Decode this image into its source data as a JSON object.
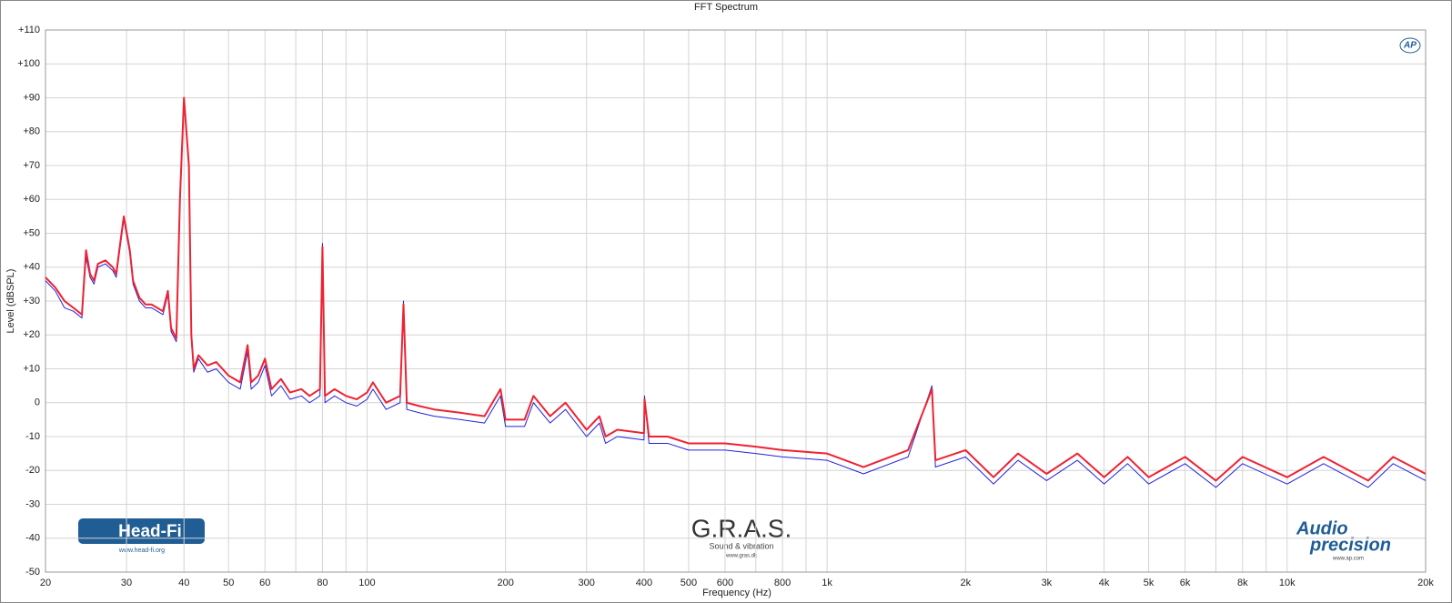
{
  "chart_data": {
    "type": "line",
    "title": "FFT Spectrum",
    "xlabel": "Frequency (Hz)",
    "ylabel": "Level (dBSPL)",
    "xscale": "log",
    "grid": true,
    "xlim": [
      20,
      20000
    ],
    "xticks": [
      20,
      30,
      40,
      50,
      60,
      80,
      100,
      200,
      300,
      400,
      500,
      600,
      800,
      {
        "value": 1000,
        "label": "1k"
      },
      {
        "value": 2000,
        "label": "2k"
      },
      {
        "value": 3000,
        "label": "3k"
      },
      {
        "value": 4000,
        "label": "4k"
      },
      {
        "value": 5000,
        "label": "5k"
      },
      {
        "value": 6000,
        "label": "6k"
      },
      {
        "value": 8000,
        "label": "8k"
      },
      {
        "value": 10000,
        "label": "10k"
      },
      {
        "value": 20000,
        "label": "20k"
      }
    ],
    "x_minor_grid": [
      70,
      90,
      700,
      900,
      7000,
      9000
    ],
    "ylim": [
      -50,
      110
    ],
    "yticks": [
      -50,
      -40,
      -30,
      -20,
      -10,
      0,
      {
        "value": 10,
        "label": "+10"
      },
      {
        "value": 20,
        "label": "+20"
      },
      {
        "value": 30,
        "label": "+30"
      },
      {
        "value": 40,
        "label": "+40"
      },
      {
        "value": 50,
        "label": "+50"
      },
      {
        "value": 60,
        "label": "+60"
      },
      {
        "value": 70,
        "label": "+70"
      },
      {
        "value": 80,
        "label": "+80"
      },
      {
        "value": 90,
        "label": "+90"
      },
      {
        "value": 100,
        "label": "+100"
      },
      {
        "value": 110,
        "label": "+110"
      }
    ],
    "x": [
      20,
      21,
      22,
      23,
      24,
      24.5,
      25,
      25.5,
      26,
      27,
      28,
      28.5,
      29,
      29.6,
      30.5,
      31,
      32,
      33,
      34,
      35,
      36,
      36.9,
      37.5,
      38.5,
      39.2,
      40,
      41,
      41.5,
      42,
      43,
      45,
      47,
      50,
      53,
      55,
      56,
      58,
      60,
      62,
      65,
      68,
      72,
      75,
      79,
      80,
      81,
      85,
      90,
      95,
      100,
      103,
      110,
      118,
      120,
      122,
      130,
      140,
      160,
      180,
      195,
      200,
      220,
      230,
      250,
      270,
      300,
      320,
      330,
      350,
      400,
      401,
      410,
      450,
      500,
      600,
      700,
      800,
      1000,
      1200,
      1500,
      1690,
      1720,
      2000,
      2300,
      2600,
      3000,
      3500,
      4000,
      4500,
      5000,
      6000,
      7000,
      8000,
      10000,
      12000,
      15000,
      17000,
      20000
    ],
    "series": [
      {
        "color": "#2222dd",
        "values": [
          36,
          33,
          28,
          27,
          25,
          43,
          37,
          35,
          40,
          41,
          39,
          37,
          45,
          54,
          44,
          35,
          30,
          28,
          28,
          27,
          26,
          32,
          21,
          18,
          59,
          89,
          69,
          19,
          9,
          13,
          9,
          10,
          6,
          4,
          15,
          4,
          6,
          11,
          2,
          5,
          1,
          2,
          0,
          2,
          47,
          0,
          2,
          0,
          -1,
          1,
          4,
          -2,
          0,
          30,
          -2,
          -3,
          -4,
          -5,
          -6,
          2,
          -7,
          -7,
          0,
          -6,
          -2,
          -10,
          -6,
          -12,
          -10,
          -11,
          2,
          -12,
          -12,
          -14,
          -14,
          -15,
          -16,
          -17,
          -21,
          -16,
          5,
          -19,
          -16,
          -24,
          -17,
          -23,
          -17,
          -24,
          -18,
          -24,
          -18,
          -25,
          -18,
          -24,
          -18,
          -25,
          -18,
          -23
        ]
      },
      {
        "color": "#ee2233",
        "values": [
          37,
          34,
          30,
          28,
          26,
          45,
          38,
          36,
          41,
          42,
          40,
          38,
          46,
          55,
          45,
          36,
          31,
          29,
          29,
          28,
          27,
          33,
          22,
          19,
          60,
          90,
          70,
          20,
          10,
          14,
          11,
          12,
          8,
          6,
          17,
          6,
          8,
          13,
          4,
          7,
          3,
          4,
          2,
          4,
          46,
          2,
          4,
          2,
          1,
          3,
          6,
          0,
          2,
          29,
          0,
          -1,
          -2,
          -3,
          -4,
          4,
          -5,
          -5,
          2,
          -4,
          0,
          -8,
          -4,
          -10,
          -8,
          -9,
          1,
          -10,
          -10,
          -12,
          -12,
          -13,
          -14,
          -15,
          -19,
          -14,
          4,
          -17,
          -14,
          -22,
          -15,
          -21,
          -15,
          -22,
          -16,
          -22,
          -16,
          -23,
          -16,
          -22,
          -16,
          -23,
          -16,
          -21
        ]
      }
    ]
  },
  "logos": {
    "headfi": "Head-Fi",
    "headfi_url": "www.head-fi.org",
    "gras": "G.R.A.S.",
    "gras_sub": "Sound & vibration",
    "gras_url": "www.gras.dk",
    "ap_audio": "Audio",
    "ap_precision": "precision",
    "ap_url": "www.ap.com",
    "ap_badge": "AP"
  }
}
